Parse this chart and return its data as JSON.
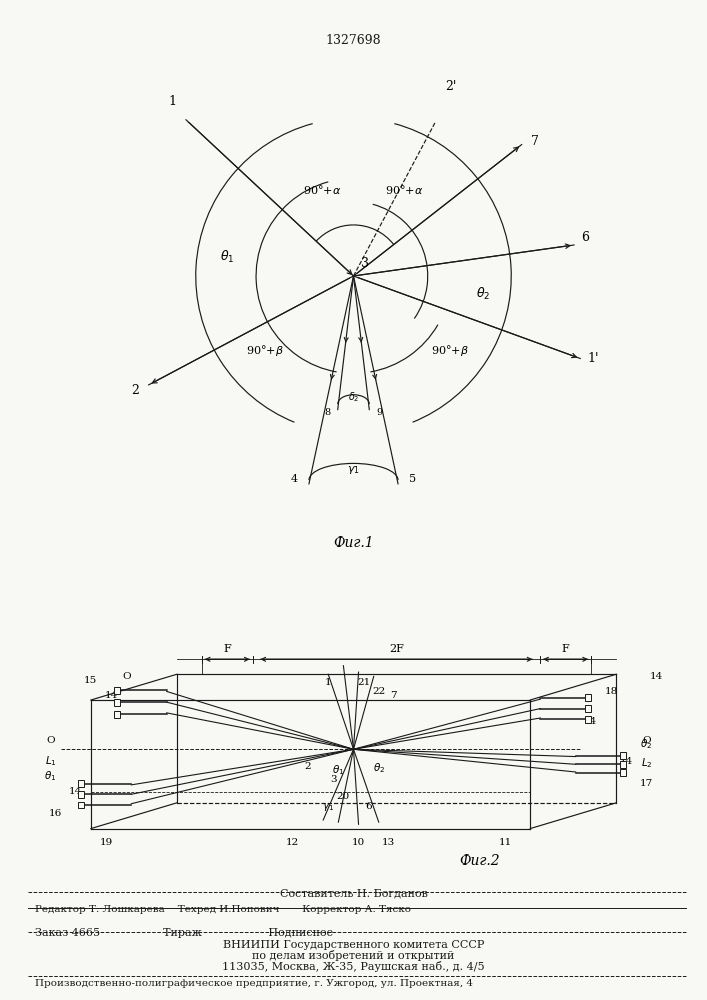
{
  "title": "1327698",
  "fig1_label": "Фиг.1",
  "fig2_label": "Фиг.2",
  "footer_lines": [
    "Составитель Н. Богданов",
    "Редактор Т. Лошкарева    Техред И.Попович       Корректор А. Тяско",
    "Заказ 4665                  Тираж                   Подписное",
    "ВНИИПИ Государственного комитета СССР",
    "по делам изобретений и открытий",
    "113035, Москва, Ж-35, Раушская наб., д. 4/5",
    "Производственно-полиграфическое предприятие, г. Ужгород, ул. Проектная, 4"
  ],
  "bg_color": "#f8f8f5",
  "line_color": "#1a1a1a"
}
